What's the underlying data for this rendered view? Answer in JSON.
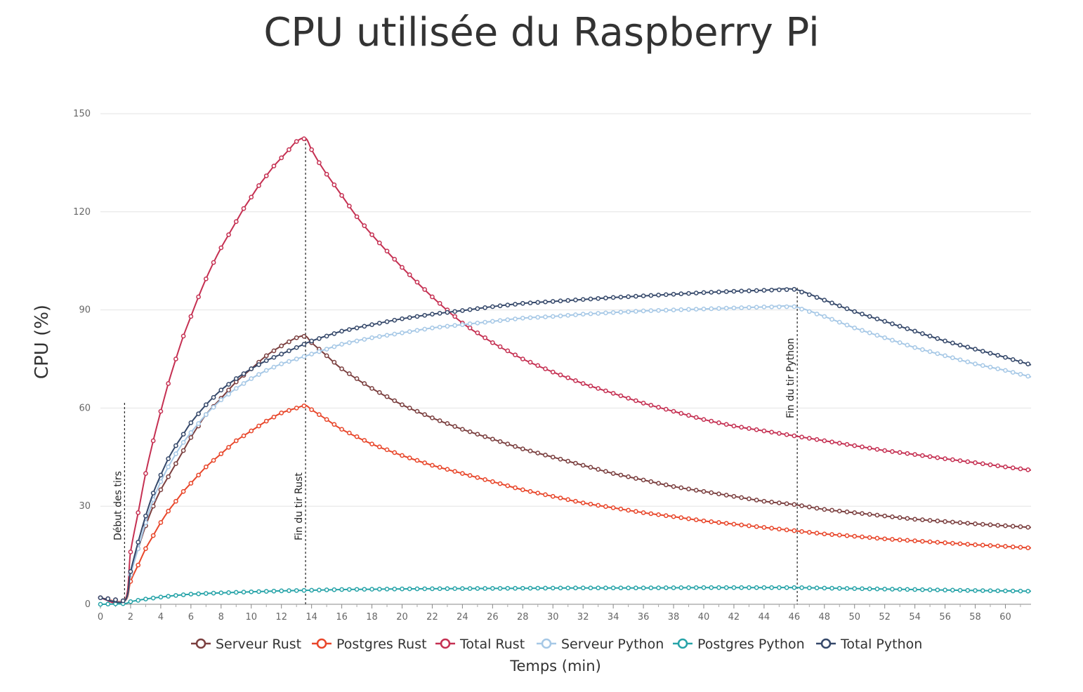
{
  "chart_data": {
    "type": "line",
    "title": "CPU utilisée du Raspberry Pi",
    "xlabel": "Temps (min)",
    "ylabel": "CPU (%)",
    "xlim": [
      0,
      61.7
    ],
    "ylim": [
      0,
      150
    ],
    "xticks": [
      0,
      2,
      4,
      6,
      8,
      10,
      12,
      14,
      16,
      18,
      20,
      22,
      24,
      26,
      28,
      30,
      32,
      34,
      36,
      38,
      40,
      42,
      44,
      46,
      48,
      50,
      52,
      54,
      56,
      58,
      60
    ],
    "yticks": [
      0,
      30,
      60,
      90,
      120,
      150
    ],
    "grid": "horizontal",
    "legend_position": "bottom",
    "series": [
      {
        "name": "Serveur Rust",
        "color": "#7b3f3f",
        "x": [
          0,
          1.6,
          2,
          2.5,
          3,
          3.5,
          4,
          4.5,
          5,
          5.5,
          6,
          7,
          8,
          9,
          10,
          11,
          12,
          13,
          13.6,
          14,
          15,
          16,
          18,
          20,
          22,
          24,
          26,
          28,
          30,
          32,
          34,
          36,
          38,
          40,
          42,
          44,
          46,
          48,
          50,
          52,
          54,
          56,
          58,
          60,
          61.7
        ],
        "y": [
          2,
          1,
          10,
          17,
          24,
          30,
          35,
          39,
          43,
          47,
          51,
          58,
          63,
          68,
          72,
          76,
          79,
          81.5,
          82,
          80,
          76,
          72,
          66,
          61,
          57,
          53.5,
          50.5,
          47.5,
          45,
          42.5,
          40,
          38,
          36,
          34.5,
          33,
          31.5,
          30.5,
          29,
          28,
          27,
          26,
          25.3,
          24.6,
          24,
          23.5
        ]
      },
      {
        "name": "Postgres Rust",
        "color": "#e8462a",
        "x": [
          0,
          1.6,
          2,
          2.5,
          3,
          3.5,
          4,
          4.5,
          5,
          5.5,
          6,
          7,
          8,
          9,
          10,
          11,
          12,
          13,
          13.6,
          14,
          15,
          16,
          18,
          20,
          22,
          24,
          26,
          28,
          30,
          32,
          34,
          36,
          38,
          40,
          42,
          44,
          46,
          48,
          50,
          52,
          54,
          56,
          58,
          60,
          61.7
        ],
        "y": [
          2,
          1,
          7,
          12,
          17,
          21,
          25,
          28.5,
          31.5,
          34.5,
          37,
          42,
          46,
          50,
          53,
          56,
          58.5,
          60,
          60.8,
          59.5,
          56.5,
          53.5,
          49,
          45.5,
          42.5,
          40,
          37.5,
          35,
          33,
          31,
          29.5,
          28,
          26.8,
          25.5,
          24.5,
          23.5,
          22.5,
          21.5,
          20.8,
          20,
          19.4,
          18.8,
          18.2,
          17.7,
          17.2
        ]
      },
      {
        "name": "Total Rust",
        "color": "#c53052",
        "x": [
          0,
          1.6,
          2,
          2.5,
          3,
          3.5,
          4,
          4.5,
          5,
          5.5,
          6,
          6.5,
          7,
          7.5,
          8,
          8.5,
          9,
          9.5,
          10,
          10.5,
          11,
          11.5,
          12,
          12.5,
          13,
          13.6,
          14,
          14.5,
          15,
          16,
          17,
          18,
          20,
          22,
          24,
          26,
          28,
          30,
          32,
          34,
          36,
          38,
          40,
          42,
          44,
          46,
          48,
          50,
          52,
          54,
          56,
          58,
          60,
          61.7
        ],
        "y": [
          2,
          1,
          16,
          28,
          40,
          50,
          59,
          67.5,
          75,
          82,
          88,
          94,
          99.5,
          104.5,
          109,
          113,
          117,
          121,
          124.5,
          128,
          131,
          134,
          136.5,
          139,
          141.5,
          142.5,
          139,
          135,
          131.5,
          125,
          118.5,
          113,
          103,
          94,
          86,
          80,
          75,
          71,
          67.5,
          64.5,
          61.5,
          59,
          56.5,
          54.5,
          53,
          51.5,
          50,
          48.5,
          47,
          45.8,
          44.5,
          43.3,
          42,
          41
        ]
      },
      {
        "name": "Serveur Python",
        "color": "#a6c8e6",
        "x": [
          0,
          1.6,
          2,
          2.5,
          3,
          3.5,
          4,
          4.5,
          5,
          5.5,
          6,
          7,
          8,
          9,
          10,
          11,
          12,
          13,
          14,
          16,
          18,
          20,
          22,
          24,
          26,
          28,
          30,
          32,
          34,
          36,
          38,
          40,
          42,
          44,
          46,
          48,
          50,
          52,
          54,
          56,
          58,
          60,
          61.7
        ],
        "y": [
          2,
          1,
          9,
          17,
          25,
          32,
          37.5,
          42,
          46,
          49.5,
          52.5,
          58,
          62.5,
          66,
          69,
          71.5,
          73.5,
          75,
          76.5,
          79.5,
          81.5,
          83,
          84.5,
          85.5,
          86.5,
          87.5,
          88,
          88.7,
          89.2,
          89.7,
          90,
          90.3,
          90.6,
          90.9,
          91,
          88,
          84.5,
          81.5,
          78.5,
          76,
          73.5,
          71.5,
          69.5
        ]
      },
      {
        "name": "Postgres Python",
        "color": "#26a3a8",
        "x": [
          0,
          1.6,
          2,
          3,
          4,
          5,
          6,
          8,
          10,
          12,
          14,
          16,
          18,
          20,
          24,
          28,
          32,
          36,
          40,
          44,
          46,
          50,
          54,
          58,
          61.7
        ],
        "y": [
          0,
          0.2,
          0.8,
          1.6,
          2.2,
          2.7,
          3.1,
          3.5,
          3.8,
          4.1,
          4.3,
          4.5,
          4.6,
          4.7,
          4.8,
          4.9,
          5,
          5,
          5.1,
          5.1,
          5.1,
          4.8,
          4.5,
          4.2,
          4
        ]
      },
      {
        "name": "Total Python",
        "color": "#35486a",
        "x": [
          0,
          1.6,
          2,
          2.5,
          3,
          3.5,
          4,
          4.5,
          5,
          5.5,
          6,
          7,
          8,
          9,
          10,
          11,
          12,
          13,
          14,
          16,
          18,
          20,
          22,
          24,
          26,
          28,
          30,
          32,
          34,
          36,
          38,
          40,
          42,
          44,
          46,
          48,
          50,
          52,
          54,
          56,
          58,
          60,
          61.7
        ],
        "y": [
          2,
          1,
          10,
          19,
          27,
          34,
          39.5,
          44.5,
          48.5,
          52,
          55.5,
          61,
          65.5,
          69,
          72,
          74.5,
          76.5,
          78.5,
          80.5,
          83.5,
          85.5,
          87.3,
          88.7,
          89.8,
          91,
          92,
          92.6,
          93.2,
          93.8,
          94.3,
          94.8,
          95.3,
          95.7,
          96,
          96.3,
          93,
          89.5,
          86.5,
          83.5,
          80.5,
          78,
          75.5,
          73.2
        ]
      }
    ],
    "annotations": [
      {
        "x": 1.6,
        "label": "Début des tirs"
      },
      {
        "x": 13.6,
        "label": "Fin du tir Rust"
      },
      {
        "x": 46.2,
        "label": "Fin du tir Python"
      }
    ]
  }
}
